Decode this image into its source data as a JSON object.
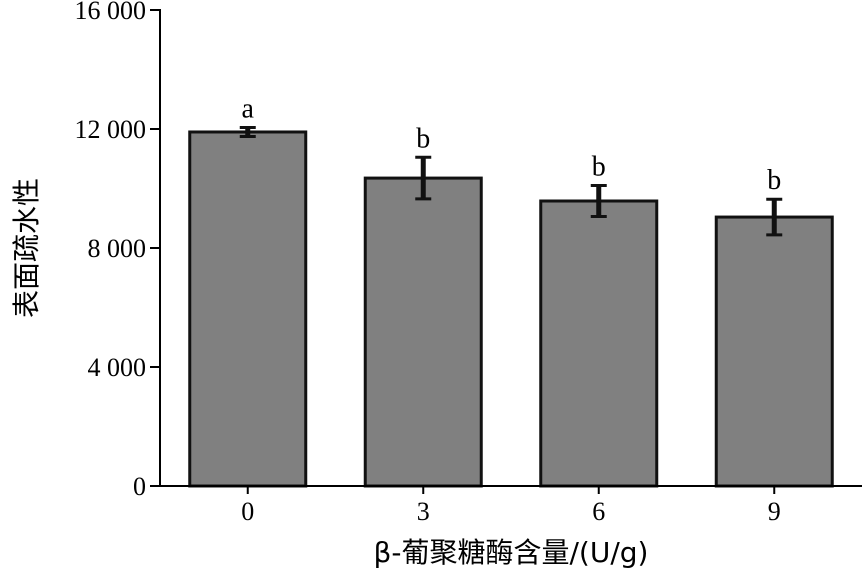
{
  "chart_data": {
    "type": "bar",
    "title": "",
    "xlabel": "β-葡聚糖酶含量/(U/g)",
    "ylabel": "表面疏水性",
    "categories": [
      "0",
      "3",
      "6",
      "9"
    ],
    "values": [
      11900,
      10350,
      9580,
      9040
    ],
    "errors": [
      150,
      700,
      520,
      600
    ],
    "significance": [
      "a",
      "b",
      "b",
      "b"
    ],
    "ylim": [
      0,
      16000
    ],
    "yticks": [
      0,
      4000,
      8000,
      12000,
      16000
    ],
    "ytick_labels": [
      "0",
      "4 000",
      "8 000",
      "12 000",
      "16 000"
    ],
    "grid": false,
    "colors": {
      "bar": "#808080",
      "bar_edge": "#111111",
      "axis": "#000000"
    }
  }
}
